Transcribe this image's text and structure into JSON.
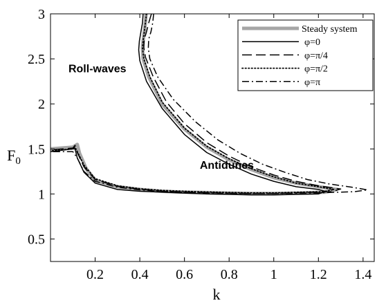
{
  "chart_data": {
    "type": "line",
    "xlabel": "k",
    "ylabel_main": "F",
    "ylabel_sub": "0",
    "xlim": [
      0,
      1.45
    ],
    "ylim": [
      0.25,
      3.0
    ],
    "xticks": [
      0.2,
      0.4,
      0.6,
      0.8,
      1.0,
      1.2,
      1.4
    ],
    "xtick_labels": [
      "0.2",
      "0.4",
      "0.6",
      "0.8",
      "1",
      "1.2",
      "1.4"
    ],
    "yticks": [
      0.5,
      1.0,
      1.5,
      2.0,
      2.5,
      3.0
    ],
    "ytick_labels": [
      "0.5",
      "1",
      "1.5",
      "2",
      "2.5",
      "3"
    ],
    "grid": false,
    "legend_position": "top-right",
    "annotations": [
      {
        "text": "Roll-waves",
        "x": 0.21,
        "y": 2.35
      },
      {
        "text": "Antidunes",
        "x": 0.79,
        "y": 1.28
      }
    ],
    "series": [
      {
        "name": "Steady system",
        "color": "#a6a6a6",
        "dash": "solid",
        "width": 5,
        "x": [
          0.428,
          0.425,
          0.42,
          0.415,
          0.412,
          0.415,
          0.44,
          0.5,
          0.6,
          0.7,
          0.8,
          0.9,
          1.0,
          1.1,
          1.2,
          1.28,
          1.23,
          1.1,
          1.0,
          0.9,
          0.8,
          0.7,
          0.6,
          0.5,
          0.4,
          0.3,
          0.2,
          0.16,
          0.13,
          0.12,
          0.1,
          0.0
        ],
        "y": [
          3.0,
          2.9,
          2.8,
          2.7,
          2.62,
          2.5,
          2.3,
          2.0,
          1.72,
          1.52,
          1.38,
          1.27,
          1.18,
          1.12,
          1.08,
          1.05,
          1.02,
          1.01,
          1.005,
          1.005,
          1.01,
          1.015,
          1.02,
          1.03,
          1.05,
          1.08,
          1.15,
          1.28,
          1.45,
          1.55,
          1.52,
          1.5
        ]
      },
      {
        "name": "φ=0",
        "color": "#000000",
        "dash": "solid",
        "width": 1.5,
        "x": [
          0.415,
          0.412,
          0.405,
          0.398,
          0.395,
          0.4,
          0.43,
          0.5,
          0.6,
          0.7,
          0.8,
          0.9,
          1.0,
          1.1,
          1.2,
          1.23,
          1.2,
          1.1,
          1.0,
          0.9,
          0.8,
          0.7,
          0.6,
          0.5,
          0.4,
          0.3,
          0.2,
          0.15,
          0.12,
          0.11,
          0.1,
          0.0
        ],
        "y": [
          3.0,
          2.9,
          2.8,
          2.7,
          2.6,
          2.48,
          2.25,
          1.95,
          1.66,
          1.46,
          1.33,
          1.22,
          1.14,
          1.08,
          1.05,
          1.03,
          1.0,
          0.995,
          0.99,
          0.99,
          0.995,
          1.0,
          1.01,
          1.02,
          1.03,
          1.05,
          1.12,
          1.24,
          1.4,
          1.5,
          1.5,
          1.47
        ]
      },
      {
        "name": "φ=π/4",
        "color": "#000000",
        "dash": "long-dash",
        "width": 1.5,
        "x": [
          0.452,
          0.44,
          0.43,
          0.42,
          0.418,
          0.425,
          0.46,
          0.52,
          0.6,
          0.7,
          0.8,
          0.9,
          1.0,
          1.1,
          1.2,
          1.3,
          1.26,
          1.1,
          1.0,
          0.9,
          0.8,
          0.7,
          0.6,
          0.5,
          0.4,
          0.3,
          0.2,
          0.15,
          0.12,
          0.11,
          0.1,
          0.0
        ],
        "y": [
          3.0,
          2.9,
          2.8,
          2.72,
          2.63,
          2.52,
          2.3,
          2.02,
          1.78,
          1.57,
          1.42,
          1.3,
          1.21,
          1.14,
          1.09,
          1.055,
          1.025,
          1.012,
          1.006,
          1.005,
          1.01,
          1.015,
          1.022,
          1.032,
          1.052,
          1.085,
          1.16,
          1.3,
          1.46,
          1.54,
          1.51,
          1.49
        ]
      },
      {
        "name": "φ=π/2",
        "color": "#000000",
        "dash": "dotted",
        "width": 1.8,
        "x": [
          0.43,
          0.425,
          0.42,
          0.415,
          0.412,
          0.418,
          0.445,
          0.5,
          0.6,
          0.7,
          0.8,
          0.9,
          1.0,
          1.1,
          1.2,
          1.27,
          1.22,
          1.1,
          1.0,
          0.9,
          0.8,
          0.7,
          0.6,
          0.5,
          0.4,
          0.3,
          0.2,
          0.15,
          0.12,
          0.11,
          0.1,
          0.0
        ],
        "y": [
          3.0,
          2.9,
          2.8,
          2.7,
          2.62,
          2.5,
          2.3,
          2.02,
          1.73,
          1.53,
          1.39,
          1.28,
          1.19,
          1.12,
          1.08,
          1.05,
          1.025,
          1.018,
          1.012,
          1.012,
          1.016,
          1.022,
          1.03,
          1.04,
          1.058,
          1.09,
          1.17,
          1.32,
          1.47,
          1.52,
          1.5,
          1.48
        ]
      },
      {
        "name": "φ=π",
        "color": "#000000",
        "dash": "dash-dot",
        "width": 1.5,
        "x": [
          0.462,
          0.458,
          0.45,
          0.44,
          0.438,
          0.445,
          0.48,
          0.55,
          0.65,
          0.75,
          0.85,
          0.95,
          1.05,
          1.15,
          1.25,
          1.35,
          1.42,
          1.36,
          1.2,
          1.0,
          0.9,
          0.8,
          0.7,
          0.6,
          0.5,
          0.4,
          0.3,
          0.2,
          0.15,
          0.12,
          0.1,
          0.0
        ],
        "y": [
          3.0,
          2.9,
          2.8,
          2.72,
          2.62,
          2.5,
          2.3,
          2.05,
          1.8,
          1.6,
          1.45,
          1.33,
          1.24,
          1.16,
          1.11,
          1.075,
          1.045,
          1.025,
          1.012,
          1.005,
          1.005,
          1.008,
          1.012,
          1.018,
          1.028,
          1.045,
          1.075,
          1.14,
          1.25,
          1.4,
          1.47,
          1.47
        ]
      }
    ]
  }
}
